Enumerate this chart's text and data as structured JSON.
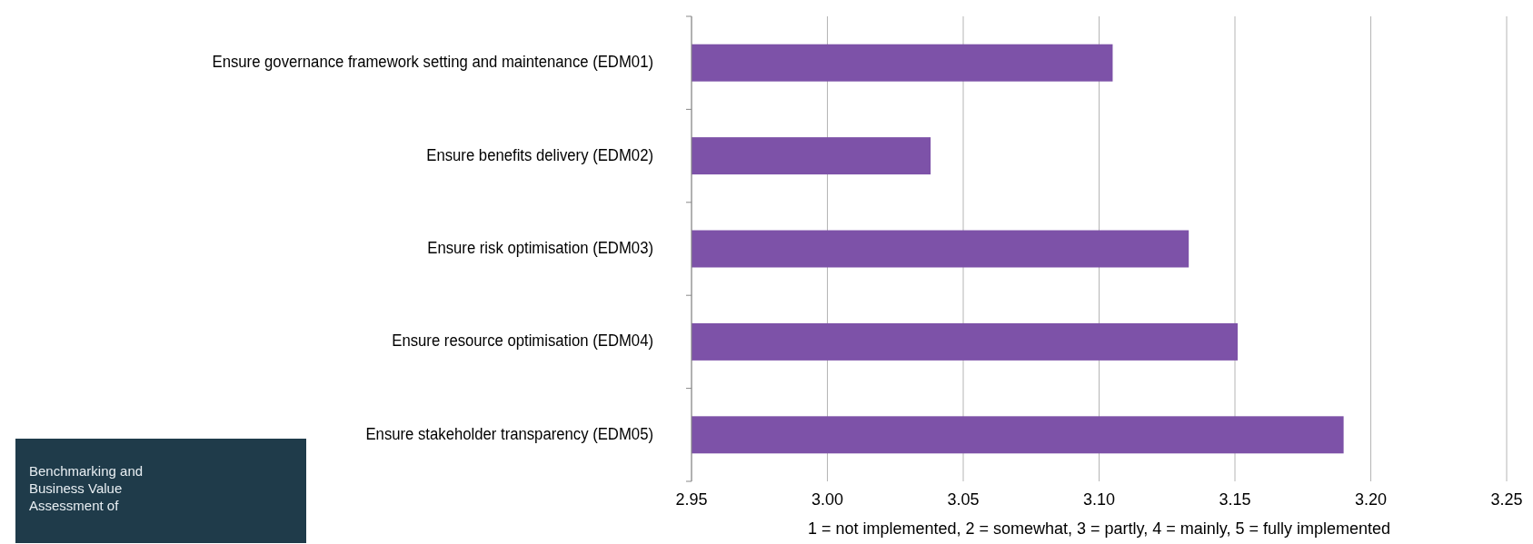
{
  "chart_data": {
    "type": "bar",
    "orientation": "horizontal",
    "categories": [
      "Ensure governance framework setting and maintenance (EDM01)",
      "Ensure benefits delivery (EDM02)",
      "Ensure risk optimisation (EDM03)",
      "Ensure resource optimisation (EDM04)",
      "Ensure stakeholder transparency (EDM05)"
    ],
    "values": [
      3.105,
      3.038,
      3.133,
      3.151,
      3.19
    ],
    "color": "#7d52a8",
    "xlim": [
      2.95,
      3.25
    ],
    "xticks": [
      {
        "value": 2.95,
        "label": "2.95"
      },
      {
        "value": 3.0,
        "label": "3.00"
      },
      {
        "value": 3.05,
        "label": "3.05"
      },
      {
        "value": 3.1,
        "label": "3.10"
      },
      {
        "value": 3.15,
        "label": "3.15"
      },
      {
        "value": 3.2,
        "label": "3.20"
      },
      {
        "value": 3.25,
        "label": "3.25"
      }
    ],
    "xlabel": "1 = not implemented, 2 = somewhat, 3 = partly, 4 = mainly, 5 = fully implemented",
    "grid": "x",
    "annotations": [
      "Benchmarking and Business Value Assessment of"
    ]
  }
}
